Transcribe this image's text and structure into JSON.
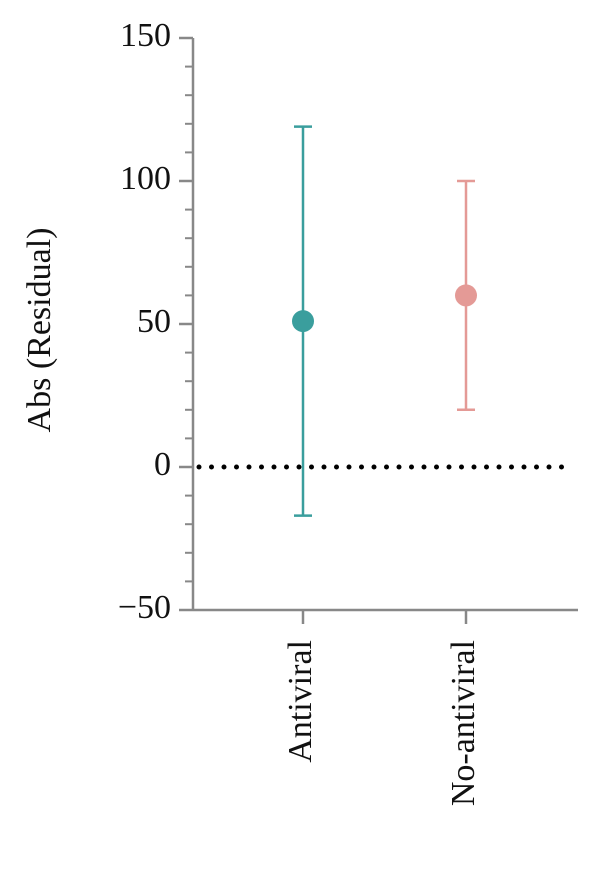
{
  "chart_data": {
    "type": "errorbar",
    "y_label": "Abs (Residual)",
    "categories": [
      "Antiviral",
      "No-antiviral"
    ],
    "values": [
      51,
      60
    ],
    "errors": [
      68,
      40
    ],
    "colors": [
      "#3a9e9d",
      "#e49a96"
    ],
    "ylim": [
      -50,
      150
    ],
    "yticks": [
      {
        "value": -50,
        "label": "−50"
      },
      0,
      50,
      100,
      150
    ],
    "yminorticks": [
      -40,
      -30,
      -20,
      -10,
      10,
      20,
      30,
      40,
      60,
      70,
      80,
      90,
      110,
      120,
      130,
      140
    ],
    "reference_line": 0
  }
}
